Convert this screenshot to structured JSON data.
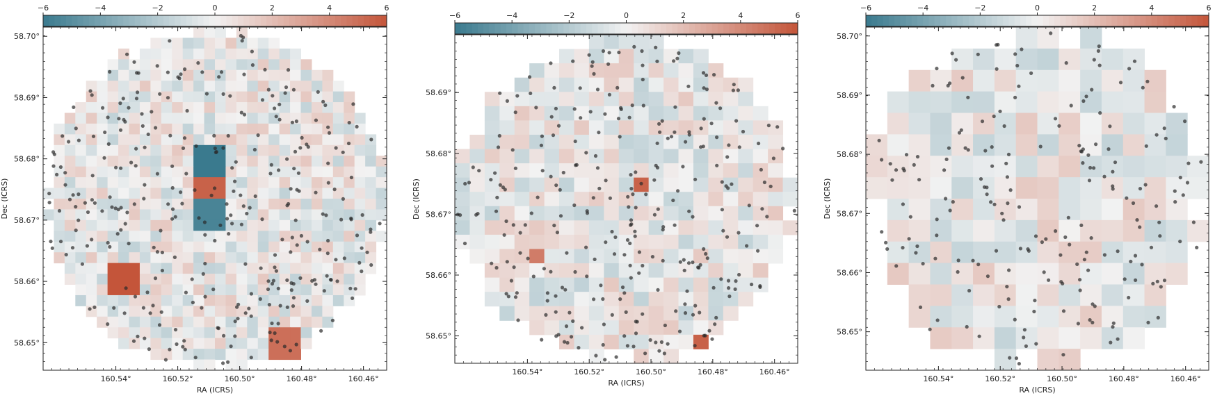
{
  "colormap": {
    "low": "#3a7a8e",
    "mid": "#f2f2f2",
    "high": "#c4553a"
  },
  "chart_data": [
    {
      "type": "heatmap",
      "title": "",
      "xlabel": "RA (ICRS)",
      "ylabel": "Dec (ICRS)",
      "xticks": [
        "160.54°",
        "160.52°",
        "160.50°",
        "160.48°",
        "160.46°"
      ],
      "yticks": [
        "58.70°",
        "58.69°",
        "58.68°",
        "58.67°",
        "58.66°",
        "58.65°"
      ],
      "colorbar": {
        "vmin": -6,
        "vmax": 6,
        "ticks": [
          "−6",
          "−4",
          "−2",
          "0",
          "2",
          "4",
          "6"
        ]
      },
      "grid_cells": 32,
      "pixel_scale": "small",
      "notable_cells": [
        {
          "ra": 160.539,
          "dec": 58.661,
          "value": 6
        },
        {
          "ra": 160.508,
          "dec": 58.676,
          "value": 5.5
        },
        {
          "ra": 160.508,
          "dec": 58.671,
          "value": -5.5
        },
        {
          "ra": 160.509,
          "dec": 58.679,
          "value": -6
        },
        {
          "ra": 160.486,
          "dec": 58.649,
          "value": 5
        }
      ],
      "sources_overlay": "black points (source positions)"
    },
    {
      "type": "heatmap",
      "title": "",
      "xlabel": "RA (ICRS)",
      "ylabel": "Dec (ICRS)",
      "xticks": [
        "160.54°",
        "160.52°",
        "160.50°",
        "160.48°",
        "160.46°"
      ],
      "yticks": [
        "58.69°",
        "58.68°",
        "58.67°",
        "58.66°",
        "58.65°"
      ],
      "colorbar": {
        "vmin": -6,
        "vmax": 6,
        "ticks": [
          "−6",
          "−4",
          "−2",
          "0",
          "2",
          "4",
          "6"
        ]
      },
      "grid_cells": 23,
      "pixel_scale": "medium",
      "notable_cells": [
        {
          "ra": 160.505,
          "dec": 58.676,
          "value": 5.5
        },
        {
          "ra": 160.539,
          "dec": 58.662,
          "value": 4.5
        },
        {
          "ra": 160.486,
          "dec": 58.649,
          "value": 5.5
        }
      ],
      "sources_overlay": "black points (source positions)"
    },
    {
      "type": "heatmap",
      "title": "",
      "xlabel": "RA (ICRS)",
      "ylabel": "Dec (ICRS)",
      "xticks": [
        "160.54°",
        "160.52°",
        "160.50°",
        "160.48°",
        "160.46°"
      ],
      "yticks": [
        "58.70°",
        "58.69°",
        "58.68°",
        "58.67°",
        "58.66°",
        "58.65°"
      ],
      "colorbar": {
        "vmin": -6,
        "vmax": 6,
        "ticks": [
          "−6",
          "−4",
          "−2",
          "0",
          "2",
          "4",
          "6"
        ]
      },
      "grid_cells": 16,
      "pixel_scale": "large",
      "notable_cells": [],
      "sources_overlay": "black points (source positions)"
    }
  ]
}
